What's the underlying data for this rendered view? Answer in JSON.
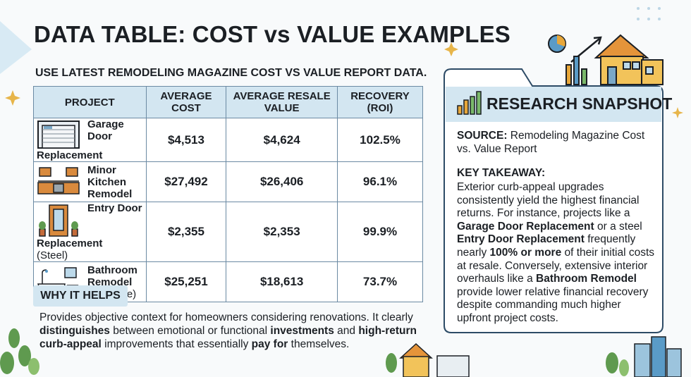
{
  "header": {
    "title": "DATA TABLE: COST vs VALUE EXAMPLES",
    "subtitle": "USE LATEST REMODELING MAGAZINE COST VS VALUE REPORT DATA."
  },
  "table": {
    "columns": [
      "PROJECT",
      "AVERAGE COST",
      "AVERAGE RESALE VALUE",
      "RECOVERY (ROI)"
    ],
    "rows": [
      {
        "project": {
          "name": "Garage Door Replacement"
        },
        "cost": "$4,513",
        "resale": "$4,624",
        "roi": "102.5%"
      },
      {
        "project": {
          "name": "Minor Kitchen Remodel"
        },
        "cost": "$27,492",
        "resale": "$26,406",
        "roi": "96.1%"
      },
      {
        "project": {
          "name": "Entry Door Replacement",
          "note": "(Steel)"
        },
        "cost": "$2,355",
        "resale": "$2,353",
        "roi": "99.9%"
      },
      {
        "project": {
          "name": "Bathroom Remodel",
          "note": "(Midscale)"
        },
        "cost": "$25,251",
        "resale": "$18,613",
        "roi": "73.7%"
      }
    ]
  },
  "why": {
    "title": "WHY IT HELPS",
    "text": [
      {
        "text": "Provides objective context for homeowners considering renovations. It clearly ",
        "bold": false
      },
      {
        "text": "distinguishes",
        "bold": true
      },
      {
        "text": " between emotional or functional ",
        "bold": false
      },
      {
        "text": "investments",
        "bold": true
      },
      {
        "text": " and ",
        "bold": false
      },
      {
        "text": "high-return curb-appeal",
        "bold": true
      },
      {
        "text": " improvements that essentially ",
        "bold": false
      },
      {
        "text": "pay for",
        "bold": true
      },
      {
        "text": " themselves.",
        "bold": false
      }
    ]
  },
  "snapshot": {
    "title": "RESEARCH SNAPSHOT",
    "source_label": "SOURCE:",
    "source": "Remodeling Magazine Cost vs. Value Report",
    "takeaway_label": "KEY TAKEAWAY:",
    "takeaway": [
      {
        "text": "Exterior curb-appeal upgrades consistently yield the highest financial returns. For instance, projects like a ",
        "bold": false
      },
      {
        "text": "Garage Door Replacement",
        "bold": true
      },
      {
        "text": " or a steel ",
        "bold": false
      },
      {
        "text": "Entry Door Replacement",
        "bold": true
      },
      {
        "text": " frequently nearly ",
        "bold": false
      },
      {
        "text": "100% or more",
        "bold": true
      },
      {
        "text": " of their initial costs at resale. Conversely, extensive interior overhauls like a ",
        "bold": false
      },
      {
        "text": "Bathroom Remodel",
        "bold": true
      },
      {
        "text": " provide lower relative financial recovery despite commanding much higher upfront project costs.",
        "bold": false
      }
    ]
  }
}
